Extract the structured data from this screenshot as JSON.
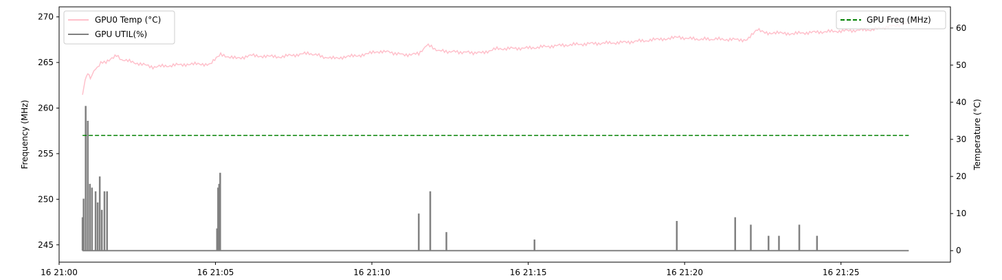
{
  "chart_data": {
    "type": "line",
    "x_range": [
      "16 21:00:00",
      "16 21:28:30"
    ],
    "x_tick_labels": [
      "16 21:00",
      "16 21:05",
      "16 21:10",
      "16 21:15",
      "16 21:20",
      "16 21:25"
    ],
    "left_axis": {
      "label": "Frequency (MHz)",
      "range": [
        243.1,
        271.1
      ],
      "ticks": [
        245,
        250,
        255,
        260,
        265,
        270
      ]
    },
    "right_axis": {
      "label": "Temperature (°C)",
      "range": [
        -3.1,
        65.7
      ],
      "ticks": [
        0,
        10,
        20,
        30,
        40,
        50,
        60
      ]
    },
    "series": [
      {
        "name": "GPU0 Temp (°C)",
        "axis": "right",
        "color": "#ffc0cb",
        "points": [
          [
            "16 21:00:45",
            42
          ],
          [
            "16 21:00:50",
            46
          ],
          [
            "16 21:00:55",
            48
          ],
          [
            "16 21:01:00",
            46.5
          ],
          [
            "16 21:01:10",
            49
          ],
          [
            "16 21:01:20",
            50.5
          ],
          [
            "16 21:01:30",
            51
          ],
          [
            "16 21:01:50",
            52.5
          ],
          [
            "16 21:02:00",
            51.5
          ],
          [
            "16 21:02:30",
            50.5
          ],
          [
            "16 21:03:00",
            49.5
          ],
          [
            "16 21:04:00",
            50.2
          ],
          [
            "16 21:04:50",
            50.3
          ],
          [
            "16 21:05:10",
            52.8
          ],
          [
            "16 21:05:40",
            51.8
          ],
          [
            "16 21:06:10",
            52.6
          ],
          [
            "16 21:07:00",
            52.2
          ],
          [
            "16 21:08:00",
            53.2
          ],
          [
            "16 21:08:40",
            51.8
          ],
          [
            "16 21:09:30",
            52.5
          ],
          [
            "16 21:10:20",
            53.8
          ],
          [
            "16 21:11:00",
            52.8
          ],
          [
            "16 21:11:30",
            53.0
          ],
          [
            "16 21:11:45",
            55.5
          ],
          [
            "16 21:12:10",
            53.8
          ],
          [
            "16 21:12:50",
            53.5
          ],
          [
            "16 21:13:30",
            53.3
          ],
          [
            "16 21:14:00",
            54.4
          ],
          [
            "16 21:15:00",
            54.6
          ],
          [
            "16 21:16:00",
            55.3
          ],
          [
            "16 21:17:00",
            55.8
          ],
          [
            "16 21:18:00",
            56.1
          ],
          [
            "16 21:19:00",
            56.8
          ],
          [
            "16 21:19:50",
            57.5
          ],
          [
            "16 21:20:20",
            57.0
          ],
          [
            "16 21:21:00",
            57.0
          ],
          [
            "16 21:21:30",
            56.9
          ],
          [
            "16 21:22:00",
            56.8
          ],
          [
            "16 21:22:20",
            59.5
          ],
          [
            "16 21:22:40",
            58.7
          ],
          [
            "16 21:23:30",
            58.5
          ],
          [
            "16 21:24:00",
            58.8
          ],
          [
            "16 21:25:00",
            59.2
          ],
          [
            "16 21:26:00",
            59.6
          ],
          [
            "16 21:27:10",
            61.3
          ]
        ]
      },
      {
        "name": "GPU UTIL(%)",
        "axis": "right",
        "color": "#808080",
        "baseline": 0,
        "points": [
          [
            "16 21:00:45",
            9
          ],
          [
            "16 21:00:47",
            14
          ],
          [
            "16 21:00:49",
            0
          ],
          [
            "16 21:00:51",
            39
          ],
          [
            "16 21:00:53",
            0
          ],
          [
            "16 21:00:55",
            35
          ],
          [
            "16 21:00:57",
            0
          ],
          [
            "16 21:00:59",
            18
          ],
          [
            "16 21:01:01",
            0
          ],
          [
            "16 21:01:03",
            17
          ],
          [
            "16 21:01:05",
            0
          ],
          [
            "16 21:01:10",
            16
          ],
          [
            "16 21:01:12",
            0
          ],
          [
            "16 21:01:14",
            13
          ],
          [
            "16 21:01:16",
            0
          ],
          [
            "16 21:01:18",
            20
          ],
          [
            "16 21:01:20",
            0
          ],
          [
            "16 21:01:22",
            11
          ],
          [
            "16 21:01:25",
            0
          ],
          [
            "16 21:01:27",
            16
          ],
          [
            "16 21:01:32",
            16
          ],
          [
            "16 21:01:34",
            0
          ],
          [
            "16 21:05:03",
            6
          ],
          [
            "16 21:05:05",
            17
          ],
          [
            "16 21:05:07",
            18
          ],
          [
            "16 21:05:09",
            21
          ],
          [
            "16 21:05:11",
            0
          ],
          [
            "16 21:11:30",
            10
          ],
          [
            "16 21:11:52",
            16
          ],
          [
            "16 21:12:23",
            5
          ],
          [
            "16 21:15:12",
            3
          ],
          [
            "16 21:19:45",
            8
          ],
          [
            "16 21:21:37",
            9
          ],
          [
            "16 21:22:07",
            7
          ],
          [
            "16 21:22:41",
            4
          ],
          [
            "16 21:23:01",
            4
          ],
          [
            "16 21:23:40",
            7
          ],
          [
            "16 21:24:14",
            4
          ],
          [
            "16 21:27:10",
            0
          ]
        ]
      },
      {
        "name": "GPU Freq (MHz)",
        "axis": "left",
        "color": "#008000",
        "style": "dashed",
        "points": [
          [
            "16 21:00:45",
            257
          ],
          [
            "16 21:27:10",
            257
          ]
        ]
      }
    ],
    "legends": [
      {
        "placement": "top-left",
        "entries": [
          "GPU0 Temp (°C)",
          "GPU UTIL(%)"
        ]
      },
      {
        "placement": "top-right",
        "entries": [
          "GPU Freq (MHz)"
        ]
      }
    ],
    "grid": false
  }
}
